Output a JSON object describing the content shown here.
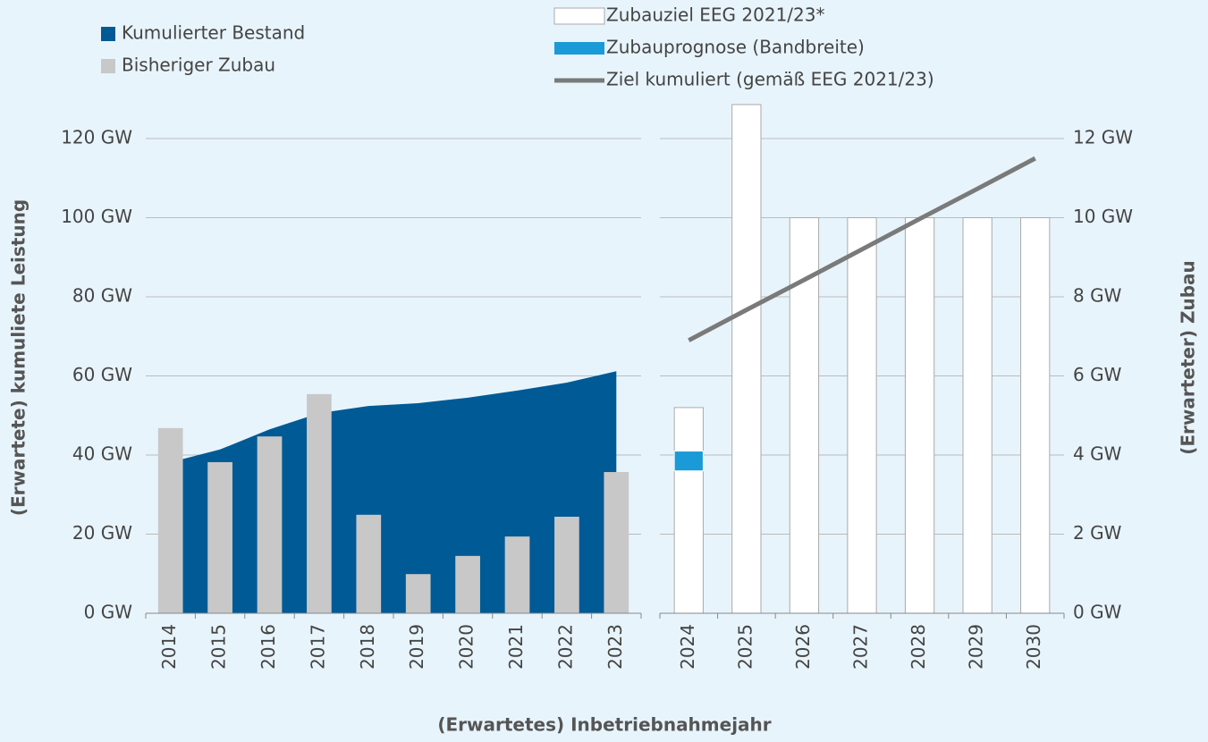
{
  "chart_data": [
    {
      "type": "area_bar",
      "ylabel": "(Erwartete) kumuliete Leistung",
      "xlabel": "(Erwartetes) Inbetriebnahmejahr",
      "categories": [
        "2014",
        "2015",
        "2016",
        "2017",
        "2018",
        "2019",
        "2020",
        "2021",
        "2022",
        "2023"
      ],
      "series": [
        {
          "name": "Kumulierter Bestand",
          "color": "#005a96",
          "axis": "y",
          "values": [
            38.2,
            41.4,
            46.5,
            50.6,
            52.4,
            53.1,
            54.5,
            56.3,
            58.3,
            61.2
          ]
        },
        {
          "name": "Bisheriger Zubau",
          "color": "#c8c8c8",
          "axis": "y2",
          "values": [
            4.68,
            3.82,
            4.47,
            5.54,
            2.49,
            0.99,
            1.45,
            1.94,
            2.44,
            3.57
          ]
        }
      ],
      "ylim": [
        0,
        130
      ],
      "y2lim": [
        0,
        13
      ],
      "yticks": [
        {
          "value": 0,
          "label": "0 GW"
        },
        {
          "value": 20,
          "label": "20 GW"
        },
        {
          "value": 40,
          "label": "40 GW"
        },
        {
          "value": 60,
          "label": "60 GW"
        },
        {
          "value": 80,
          "label": "80 GW"
        },
        {
          "value": 100,
          "label": "100 GW"
        },
        {
          "value": 120,
          "label": "120 GW"
        }
      ],
      "grid": true
    },
    {
      "type": "bar_line",
      "y2label": "(Erwarteter) Zubau",
      "categories": [
        "2024",
        "2025",
        "2026",
        "2027",
        "2028",
        "2029",
        "2030"
      ],
      "series": [
        {
          "name": "Zubauziel EEG 2021/23*",
          "color": "#ffffff",
          "axis": "y2",
          "values": [
            5.2,
            12.86,
            10,
            10,
            10,
            10,
            10
          ]
        },
        {
          "name": "Zubauprognose (Bandbreite)",
          "color": "#1a9ad6",
          "axis": "y2",
          "low": [
            3.6,
            null,
            null,
            null,
            null,
            null,
            null
          ],
          "high": [
            4.1,
            null,
            null,
            null,
            null,
            null,
            null
          ]
        },
        {
          "name": "Ziel kumuliert (gemäß EEG 2021/23)",
          "color": "#7a7a7a",
          "axis": "y",
          "values": [
            69,
            76.7,
            84.3,
            92,
            99.7,
            107.3,
            115
          ]
        }
      ],
      "ylim": [
        0,
        130
      ],
      "y2lim": [
        0,
        13
      ],
      "y2ticks": [
        {
          "value": 0,
          "label": "0 GW"
        },
        {
          "value": 2,
          "label": "2 GW"
        },
        {
          "value": 4,
          "label": "4 GW"
        },
        {
          "value": 6,
          "label": "6 GW"
        },
        {
          "value": 8,
          "label": "8 GW"
        },
        {
          "value": 10,
          "label": "10 GW"
        },
        {
          "value": 12,
          "label": "12 GW"
        }
      ],
      "grid": true
    }
  ]
}
